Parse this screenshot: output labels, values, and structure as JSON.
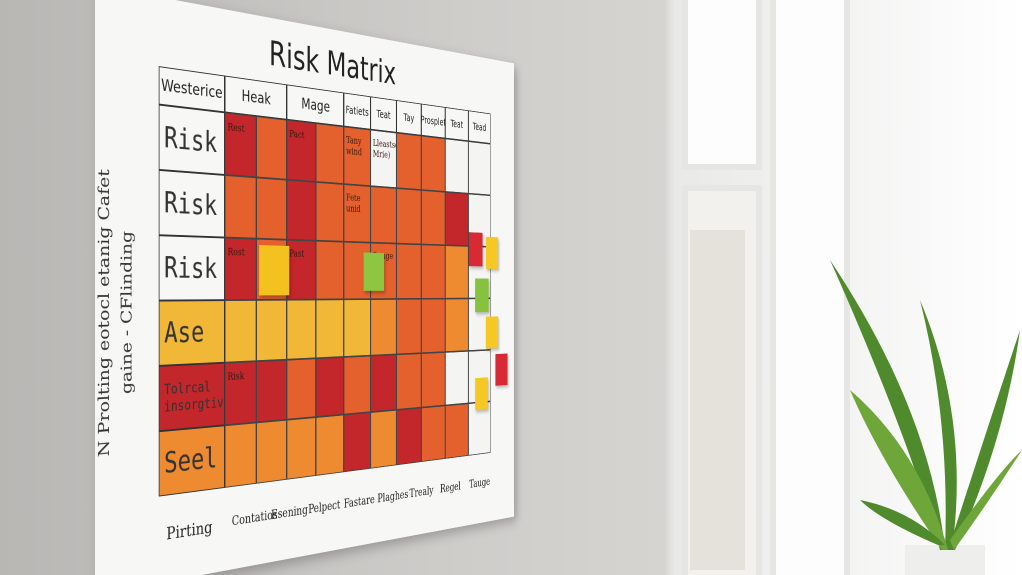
{
  "board": {
    "title": "Risk Matrix",
    "side_text": [
      "N Prolting eotocl etanig Cafet",
      "gaine - CFlinding"
    ],
    "header": [
      "Westerice",
      "Heak",
      "Mage",
      "Fatiets",
      "Teat",
      "Tay",
      "Prosplet",
      "Teat",
      "Tead"
    ],
    "palette": {
      "R": "#c3262b",
      "O": "#e4602c",
      "L": "#ee8a2f",
      "Y": "#f1b736",
      "W": "#f4f4f2"
    },
    "rows": [
      {
        "label": "Risk",
        "cells": [
          {
            "color": "R",
            "text": "Rest"
          },
          {
            "color": "O"
          },
          {
            "color": "R",
            "text": "Pact"
          },
          {
            "color": "O"
          },
          {
            "color": "O",
            "text": "Tany wind"
          },
          {
            "color": "W",
            "text": "Lleastsel Mrie)"
          },
          {
            "color": "O"
          },
          {
            "color": "O"
          },
          {
            "color": "W"
          },
          {
            "color": "W"
          }
        ]
      },
      {
        "label": "Risk",
        "cells": [
          {
            "color": "O"
          },
          {
            "color": "O"
          },
          {
            "color": "R"
          },
          {
            "color": "O"
          },
          {
            "color": "O",
            "text": "Fete unid"
          },
          {
            "color": "O"
          },
          {
            "color": "O"
          },
          {
            "color": "O"
          },
          {
            "color": "R"
          },
          {
            "color": "W"
          }
        ]
      },
      {
        "label": "Risk",
        "cells": [
          {
            "color": "R",
            "text": "Rost"
          },
          {
            "color": "O"
          },
          {
            "color": "R",
            "text": "Past"
          },
          {
            "color": "O"
          },
          {
            "color": "O"
          },
          {
            "color": "O",
            "text": "Dange"
          },
          {
            "color": "O"
          },
          {
            "color": "O"
          },
          {
            "color": "L"
          },
          {
            "color": "W"
          }
        ]
      },
      {
        "label": "Ase",
        "cells": [
          {
            "color": "Y"
          },
          {
            "color": "Y"
          },
          {
            "color": "Y"
          },
          {
            "color": "Y"
          },
          {
            "color": "Y"
          },
          {
            "color": "L"
          },
          {
            "color": "O"
          },
          {
            "color": "O"
          },
          {
            "color": "L"
          },
          {
            "color": "W"
          }
        ]
      },
      {
        "label": "Tolrcal insorgtive",
        "cells": [
          {
            "color": "R",
            "text": "Risk"
          },
          {
            "color": "R"
          },
          {
            "color": "O"
          },
          {
            "color": "R"
          },
          {
            "color": "O"
          },
          {
            "color": "R"
          },
          {
            "color": "O"
          },
          {
            "color": "O"
          },
          {
            "color": "W"
          },
          {
            "color": "W"
          }
        ]
      },
      {
        "label": "Seel",
        "cells": [
          {
            "color": "L"
          },
          {
            "color": "L"
          },
          {
            "color": "L"
          },
          {
            "color": "L"
          },
          {
            "color": "R"
          },
          {
            "color": "L"
          },
          {
            "color": "R"
          },
          {
            "color": "O"
          },
          {
            "color": "O"
          },
          {
            "color": "W"
          }
        ]
      }
    ],
    "bottom_labels": [
      "Pirting",
      "Contatios",
      "Esening",
      "Pelpect",
      "Fastare",
      "Plaghes",
      "Trealy",
      "Regel",
      "Tauge"
    ]
  }
}
